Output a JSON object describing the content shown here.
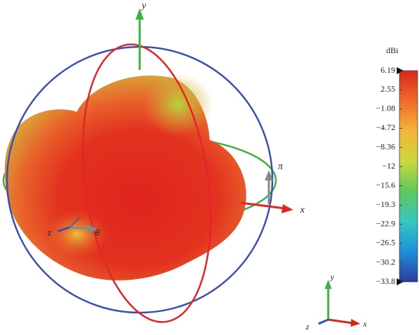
{
  "chart_data": {
    "type": "surface-3d",
    "axis_labels": {
      "x": "x",
      "y": "y",
      "z": "z",
      "theta": "θ",
      "phi": "π"
    },
    "triad_labels": {
      "x": "x",
      "y": "y",
      "z": "z"
    },
    "colorbar_label": "dBi",
    "clim": [
      -33.8,
      6.19
    ],
    "cticks": [
      6.19,
      2.55,
      {
        "value": -1.08,
        "label": "−1.08"
      },
      {
        "value": -4.72,
        "label": "−4.72"
      },
      {
        "value": -8.36,
        "label": "−8.36"
      },
      {
        "value": -12,
        "label": "−12"
      },
      {
        "value": -15.6,
        "label": "−15.6"
      },
      {
        "value": -19.3,
        "label": "−19.3"
      },
      {
        "value": -22.9,
        "label": "−22.9"
      },
      {
        "value": -26.5,
        "label": "−26.5"
      },
      {
        "value": -30.2,
        "label": "−30.2"
      },
      {
        "value": -33.8,
        "label": "−33.8"
      }
    ],
    "colormap": [
      "#2b3a9e",
      "#1e90d8",
      "#34c8c0",
      "#5fc85a",
      "#c9d93a",
      "#f4b43a",
      "#ee6b2b",
      "#d9261c"
    ]
  }
}
